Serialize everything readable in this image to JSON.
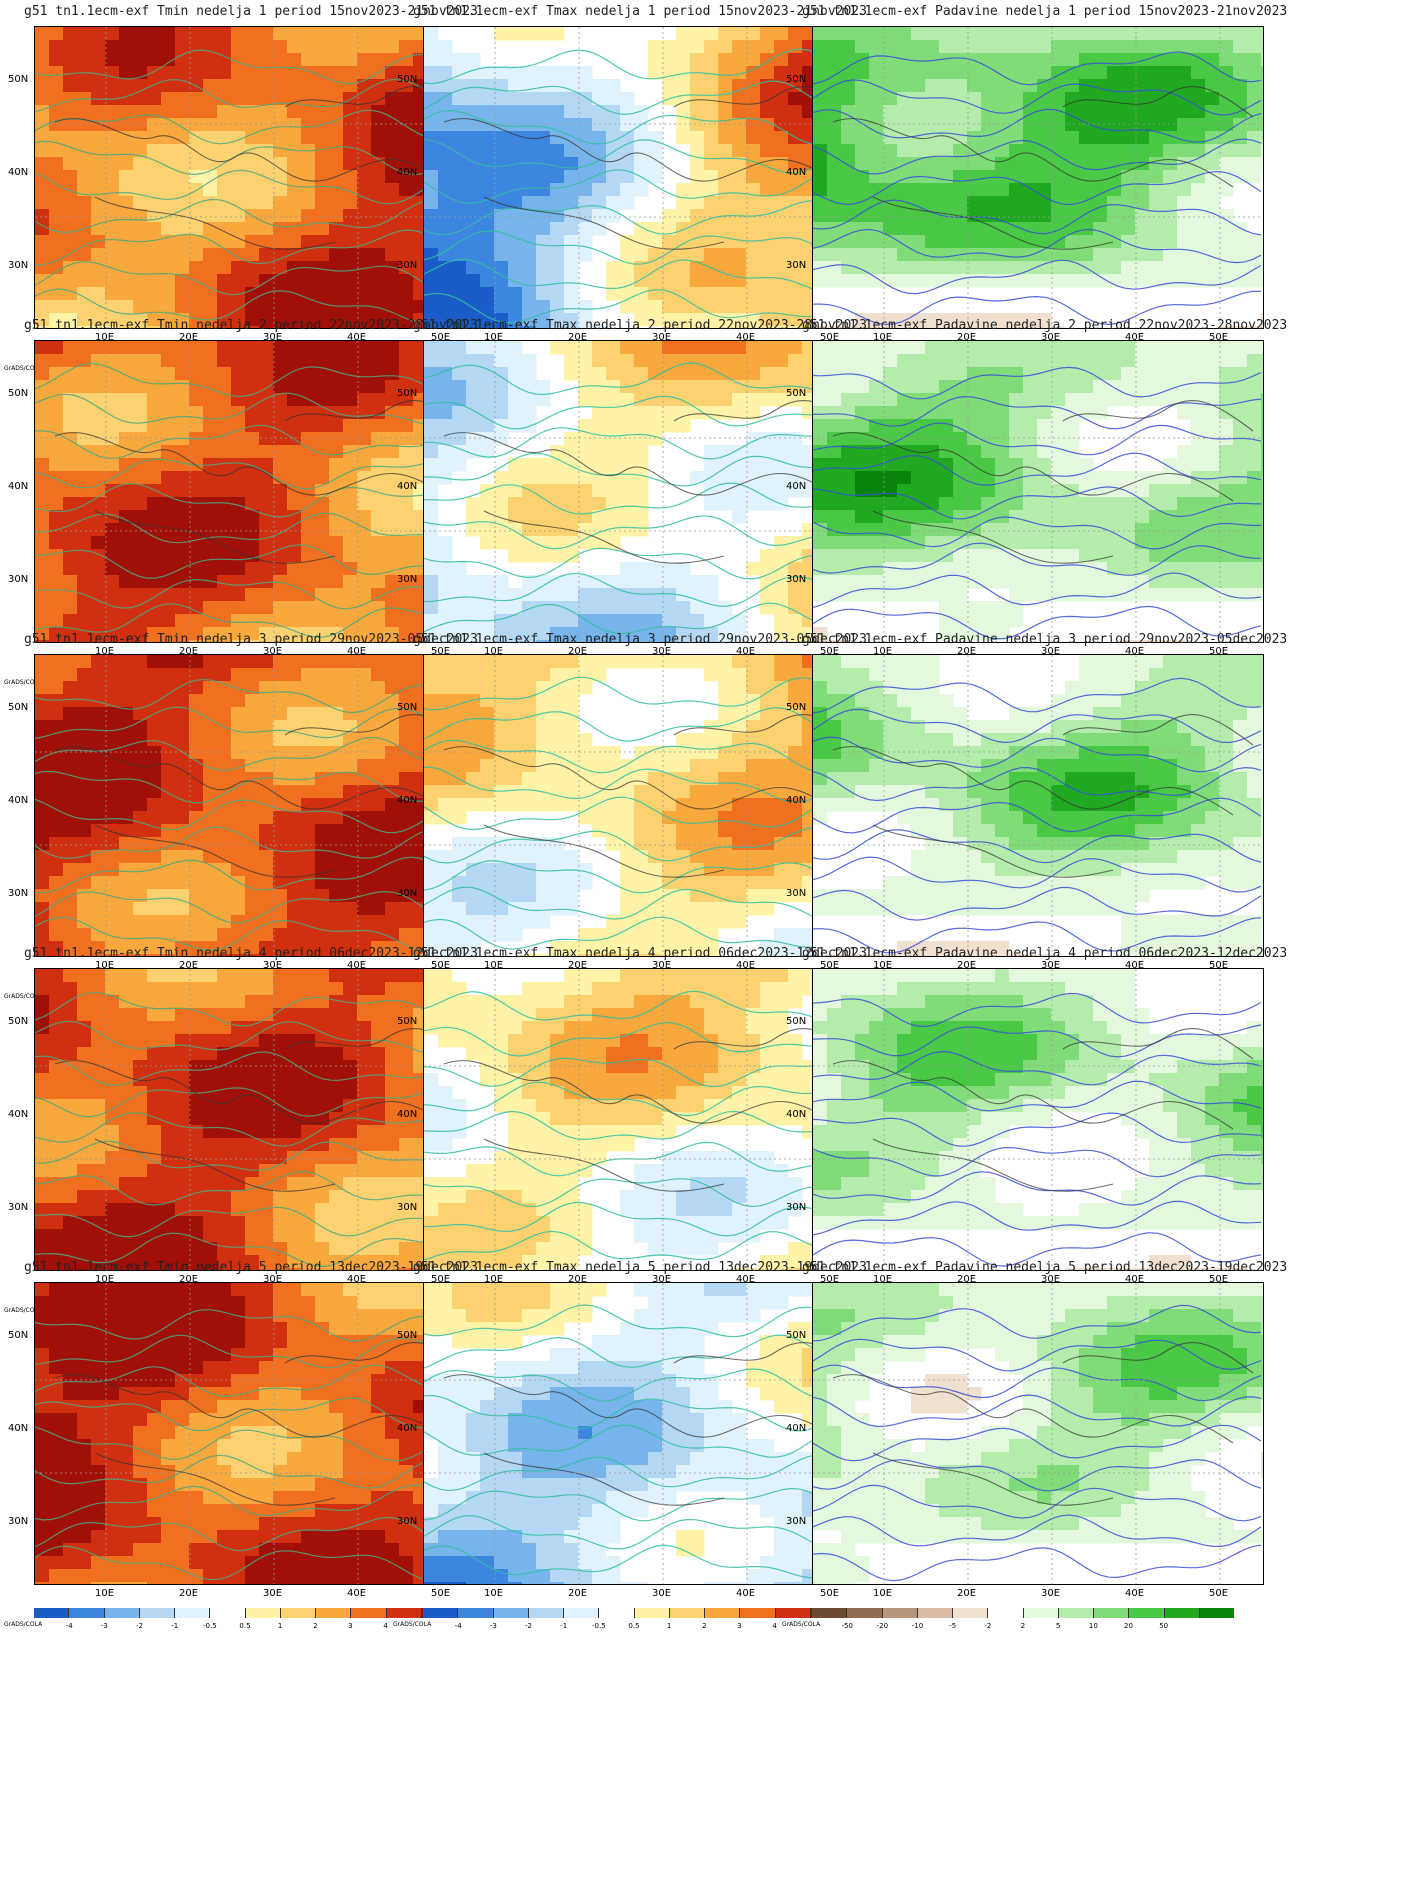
{
  "axes": {
    "lat_labels": [
      "50N",
      "40N",
      "30N"
    ],
    "lon_labels": [
      "10E",
      "20E",
      "30E",
      "40E",
      "50E"
    ]
  },
  "grads_label": "GrADS/COLA",
  "colorbars": {
    "temp": {
      "ticks": [
        "-4",
        "-3",
        "-2",
        "-1",
        "-0.5",
        "0.5",
        "1",
        "2",
        "3",
        "4"
      ],
      "colors": [
        "#1a5cc8",
        "#3c86e0",
        "#78b4ec",
        "#b4d8f4",
        "#e0f2fc",
        "#ffffff",
        "#fff3a8",
        "#fcd270",
        "#f8a83c",
        "#f07020",
        "#d03010",
        "#a01008"
      ]
    },
    "precip": {
      "ticks": [
        "-50",
        "-20",
        "-10",
        "-5",
        "-2",
        "2",
        "5",
        "10",
        "20",
        "50"
      ],
      "colors": [
        "#6e4a32",
        "#946c52",
        "#b89478",
        "#d8bca4",
        "#f0e0d0",
        "#ffffff",
        "#e4f8de",
        "#b4ecac",
        "#80dc78",
        "#48c844",
        "#20a820",
        "#0a840a"
      ]
    }
  },
  "panels": [
    {
      "title": "g51  tn1.1ecm-exf Tmin nedelja 1 period 15nov2023-21nov2023",
      "kind": "tmin",
      "shade": [
        0.45,
        0.85
      ]
    },
    {
      "title": "g51  tn1.1ecm-exf Tmax nedelja 1 period 15nov2023-21nov2023",
      "kind": "tmax",
      "shade": [
        -0.8,
        0.7
      ]
    },
    {
      "title": "g51  tn1.1ecm-exf Padavine nedelja 1 period 15nov2023-21nov2023",
      "kind": "prec",
      "shade": [
        0.75,
        0.35
      ]
    },
    {
      "title": "g51  tn1.1ecm-exf Tmin nedelja 2 period 22nov2023-28nov2023",
      "kind": "tmin",
      "shade": [
        0.75,
        0.55
      ]
    },
    {
      "title": "g51  tn1.1ecm-exf Tmax nedelja 2 period 22nov2023-28nov2023",
      "kind": "tmax",
      "shade": [
        -0.3,
        0.2
      ]
    },
    {
      "title": "g51  tn1.1ecm-exf Padavine nedelja 2 period 22nov2023-28nov2023",
      "kind": "prec",
      "shade": [
        0.4,
        0.3
      ]
    },
    {
      "title": "g51  tn1.1ecm-exf Tmin nedelja 3 period 29nov2023-05dec2023",
      "kind": "tmin",
      "shade": [
        0.8,
        0.7
      ]
    },
    {
      "title": "g51  tn1.1ecm-exf Tmax nedelja 3 period 29nov2023-05dec2023",
      "kind": "tmax",
      "shade": [
        0.05,
        0.25
      ]
    },
    {
      "title": "g51  tn1.1ecm-exf Padavine nedelja 3 period 29nov2023-05dec2023",
      "kind": "prec",
      "shade": [
        0.3,
        0.25
      ]
    },
    {
      "title": "g51  tn1.1ecm-exf Tmin nedelja 4 period 06dec2023-12dec2023",
      "kind": "tmin",
      "shade": [
        0.8,
        0.6
      ]
    },
    {
      "title": "g51  tn1.1ecm-exf Tmax nedelja 4 period 06dec2023-12dec2023",
      "kind": "tmax",
      "shade": [
        0.0,
        0.15
      ]
    },
    {
      "title": "g51  tn1.1ecm-exf Padavine nedelja 4 period 06dec2023-12dec2023",
      "kind": "prec",
      "shade": [
        0.25,
        0.2
      ]
    },
    {
      "title": "g51  tn1.1ecm-exf Tmin nedelja 5 period 13dec2023-19dec2023",
      "kind": "tmin",
      "shade": [
        0.85,
        0.6
      ]
    },
    {
      "title": "g51  tn1.1ecm-exf Tmax nedelja 5 period 13dec2023-19dec2023",
      "kind": "tmax",
      "shade": [
        -0.35,
        -0.25
      ]
    },
    {
      "title": "g51  tn1.1ecm-exf Padavine nedelja 5 period 13dec2023-19dec2023",
      "kind": "prec",
      "shade": [
        0.25,
        0.2
      ]
    }
  ]
}
